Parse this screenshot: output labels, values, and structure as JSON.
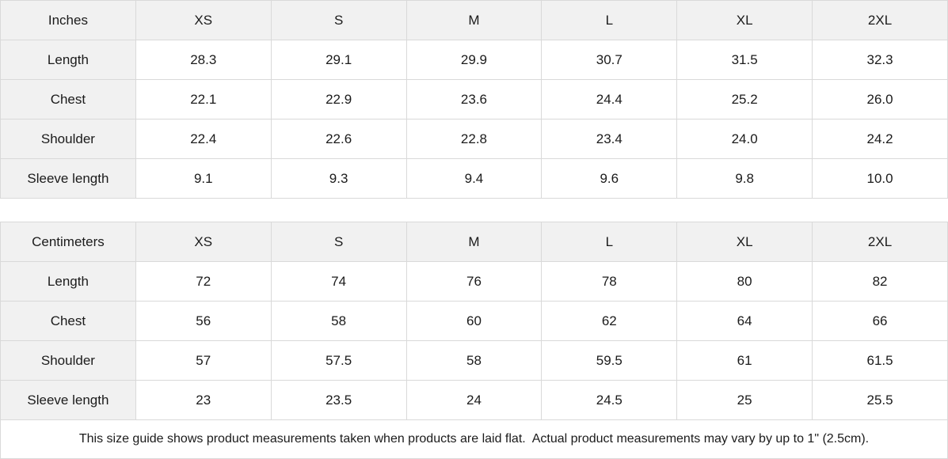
{
  "tables": [
    {
      "unit_label": "Inches",
      "sizes": [
        "XS",
        "S",
        "M",
        "L",
        "XL",
        "2XL"
      ],
      "rows": [
        {
          "label": "Length",
          "values": [
            "28.3",
            "29.1",
            "29.9",
            "30.7",
            "31.5",
            "32.3"
          ]
        },
        {
          "label": "Chest",
          "values": [
            "22.1",
            "22.9",
            "23.6",
            "24.4",
            "25.2",
            "26.0"
          ]
        },
        {
          "label": "Shoulder",
          "values": [
            "22.4",
            "22.6",
            "22.8",
            "23.4",
            "24.0",
            "24.2"
          ]
        },
        {
          "label": "Sleeve length",
          "values": [
            "9.1",
            "9.3",
            "9.4",
            "9.6",
            "9.8",
            "10.0"
          ]
        }
      ]
    },
    {
      "unit_label": "Centimeters",
      "sizes": [
        "XS",
        "S",
        "M",
        "L",
        "XL",
        "2XL"
      ],
      "rows": [
        {
          "label": "Length",
          "values": [
            "72",
            "74",
            "76",
            "78",
            "80",
            "82"
          ]
        },
        {
          "label": "Chest",
          "values": [
            "56",
            "58",
            "60",
            "62",
            "64",
            "66"
          ]
        },
        {
          "label": "Shoulder",
          "values": [
            "57",
            "57.5",
            "58",
            "59.5",
            "61",
            "61.5"
          ]
        },
        {
          "label": "Sleeve length",
          "values": [
            "23",
            "23.5",
            "24",
            "24.5",
            "25",
            "25.5"
          ]
        }
      ]
    }
  ],
  "footer": {
    "note": "This size guide shows product measurements taken when products are laid flat.  Actual product measurements may vary by up to 1\" (2.5cm)."
  },
  "colors": {
    "header_bg": "#f1f1f1",
    "border": "#d9d9d9",
    "text": "#1b1b1b"
  }
}
